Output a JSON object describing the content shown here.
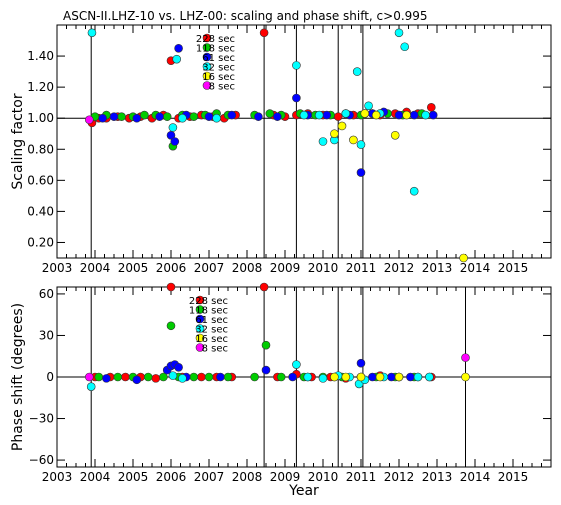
{
  "title": "ASCN-II.LHZ-10 vs. LHZ-00: scaling and phase shift, c>0.995",
  "colors": {
    "228 sec": "#ff0000",
    "118 sec": "#00cc00",
    "61 sec": "#0000ff",
    "32 sec": "#00ffff",
    "16 sec": "#ffff00",
    "8 sec": "#ff00ff"
  },
  "chart_data": [
    {
      "type": "scatter",
      "name": "scaling",
      "ylabel": "Scaling factor",
      "xlabel": "",
      "xlim": [
        2003,
        2016
      ],
      "ylim": [
        0.1,
        1.6
      ],
      "x_ticks": [
        "2003",
        "2004",
        "2005",
        "2006",
        "2007",
        "2008",
        "2009",
        "2010",
        "2011",
        "2012",
        "2013",
        "2014",
        "2015"
      ],
      "y_ticks": [
        "0.20",
        "0.40",
        "0.60",
        "0.80",
        "1.00",
        "1.20",
        "1.40"
      ],
      "reference_line": 1.0,
      "event_lines": [
        2003.9,
        2008.45,
        2009.3,
        2010.4,
        2011.05
      ],
      "legend": [
        "228 sec",
        "118 sec",
        "61 sec",
        "32 sec",
        "16 sec",
        "8 sec"
      ],
      "series": [
        {
          "name": "228 sec",
          "points": [
            [
              2003.92,
              0.97
            ],
            [
              2004.1,
              1.0
            ],
            [
              2004.3,
              1.0
            ],
            [
              2004.6,
              1.01
            ],
            [
              2004.9,
              1.0
            ],
            [
              2005.2,
              1.01
            ],
            [
              2005.5,
              1.0
            ],
            [
              2005.8,
              1.02
            ],
            [
              2006.0,
              1.37
            ],
            [
              2006.2,
              1.0
            ],
            [
              2006.5,
              1.01
            ],
            [
              2006.8,
              1.02
            ],
            [
              2007.1,
              1.01
            ],
            [
              2007.4,
              1.0
            ],
            [
              2007.7,
              1.02
            ],
            [
              2008.45,
              1.55
            ],
            [
              2008.7,
              1.02
            ],
            [
              2009.0,
              1.01
            ],
            [
              2009.3,
              1.02
            ],
            [
              2009.6,
              1.03
            ],
            [
              2010.0,
              1.02
            ],
            [
              2010.4,
              1.01
            ],
            [
              2010.8,
              1.02
            ],
            [
              2011.1,
              1.03
            ],
            [
              2011.5,
              1.02
            ],
            [
              2011.9,
              1.03
            ],
            [
              2012.2,
              1.04
            ],
            [
              2012.5,
              1.03
            ],
            [
              2012.85,
              1.07
            ]
          ]
        },
        {
          "name": "118 sec",
          "points": [
            [
              2004.0,
              1.01
            ],
            [
              2004.3,
              1.02
            ],
            [
              2004.7,
              1.01
            ],
            [
              2005.0,
              1.01
            ],
            [
              2005.3,
              1.02
            ],
            [
              2005.6,
              1.02
            ],
            [
              2005.9,
              1.01
            ],
            [
              2006.05,
              0.82
            ],
            [
              2006.3,
              1.02
            ],
            [
              2006.6,
              1.01
            ],
            [
              2006.9,
              1.02
            ],
            [
              2007.2,
              1.03
            ],
            [
              2007.5,
              1.02
            ],
            [
              2008.2,
              1.02
            ],
            [
              2008.6,
              1.03
            ],
            [
              2008.9,
              1.02
            ],
            [
              2009.4,
              1.03
            ],
            [
              2009.8,
              1.02
            ],
            [
              2010.2,
              1.02
            ],
            [
              2010.6,
              1.03
            ],
            [
              2011.0,
              1.02
            ],
            [
              2011.3,
              1.03
            ],
            [
              2011.7,
              1.03
            ],
            [
              2012.1,
              1.02
            ],
            [
              2012.6,
              1.03
            ]
          ]
        },
        {
          "name": "61 sec",
          "points": [
            [
              2004.2,
              1.0
            ],
            [
              2004.5,
              1.01
            ],
            [
              2005.1,
              1.0
            ],
            [
              2005.7,
              1.01
            ],
            [
              2006.0,
              0.89
            ],
            [
              2006.1,
              0.85
            ],
            [
              2006.2,
              1.45
            ],
            [
              2006.4,
              1.02
            ],
            [
              2007.0,
              1.01
            ],
            [
              2007.6,
              1.02
            ],
            [
              2008.3,
              1.01
            ],
            [
              2008.8,
              1.01
            ],
            [
              2009.3,
              1.13
            ],
            [
              2009.6,
              1.02
            ],
            [
              2010.1,
              1.02
            ],
            [
              2010.7,
              1.02
            ],
            [
              2011.0,
              0.65
            ],
            [
              2011.3,
              1.03
            ],
            [
              2011.6,
              1.04
            ],
            [
              2012.0,
              1.02
            ],
            [
              2012.4,
              1.02
            ],
            [
              2012.9,
              1.02
            ]
          ]
        },
        {
          "name": "32 sec",
          "points": [
            [
              2003.92,
              1.55
            ],
            [
              2006.05,
              0.94
            ],
            [
              2006.15,
              1.38
            ],
            [
              2006.3,
              1.0
            ],
            [
              2007.2,
              1.0
            ],
            [
              2009.3,
              1.34
            ],
            [
              2009.5,
              1.02
            ],
            [
              2009.9,
              1.02
            ],
            [
              2010.0,
              0.85
            ],
            [
              2010.3,
              0.86
            ],
            [
              2010.6,
              1.03
            ],
            [
              2010.9,
              1.3
            ],
            [
              2011.0,
              0.83
            ],
            [
              2011.2,
              1.08
            ],
            [
              2011.5,
              1.03
            ],
            [
              2012.0,
              1.55
            ],
            [
              2012.15,
              1.46
            ],
            [
              2012.4,
              0.53
            ],
            [
              2012.7,
              1.02
            ]
          ]
        },
        {
          "name": "16 sec",
          "points": [
            [
              2010.3,
              0.9
            ],
            [
              2010.5,
              0.95
            ],
            [
              2010.8,
              0.86
            ],
            [
              2011.1,
              1.03
            ],
            [
              2011.4,
              1.02
            ],
            [
              2011.9,
              0.89
            ],
            [
              2012.2,
              1.02
            ],
            [
              2013.7,
              0.1
            ]
          ]
        },
        {
          "name": "8 sec",
          "points": [
            [
              2003.85,
              0.99
            ]
          ]
        }
      ]
    },
    {
      "type": "scatter",
      "name": "phase",
      "ylabel": "Phase shift (degrees)",
      "xlabel": "Year",
      "xlim": [
        2003,
        2016
      ],
      "ylim": [
        -65,
        65
      ],
      "x_ticks": [
        "2003",
        "2004",
        "2005",
        "2006",
        "2007",
        "2008",
        "2009",
        "2010",
        "2011",
        "2012",
        "2013",
        "2014",
        "2015"
      ],
      "y_ticks": [
        "60",
        "30",
        "0",
        "−30",
        "−60"
      ],
      "reference_line": 0,
      "event_lines": [
        2003.9,
        2008.45,
        2009.3,
        2010.4,
        2011.05,
        2013.75
      ],
      "legend": [
        "228 sec",
        "118 sec",
        "61 sec",
        "32 sec",
        "16 sec",
        "8 sec"
      ],
      "series": [
        {
          "name": "228 sec",
          "points": [
            [
              2004.0,
              0
            ],
            [
              2004.4,
              0
            ],
            [
              2004.8,
              0
            ],
            [
              2005.2,
              0
            ],
            [
              2005.6,
              -1
            ],
            [
              2006.0,
              65
            ],
            [
              2006.3,
              0
            ],
            [
              2006.8,
              0
            ],
            [
              2007.2,
              0
            ],
            [
              2007.6,
              0
            ],
            [
              2008.45,
              65
            ],
            [
              2008.8,
              0
            ],
            [
              2009.3,
              2
            ],
            [
              2009.7,
              0
            ],
            [
              2010.2,
              0
            ],
            [
              2010.6,
              -1
            ],
            [
              2011.0,
              0
            ],
            [
              2011.5,
              1
            ],
            [
              2012.0,
              0
            ],
            [
              2012.5,
              0
            ],
            [
              2012.85,
              0
            ]
          ]
        },
        {
          "name": "118 sec",
          "points": [
            [
              2004.1,
              0
            ],
            [
              2004.6,
              0
            ],
            [
              2005.0,
              0
            ],
            [
              2005.4,
              0
            ],
            [
              2005.8,
              0
            ],
            [
              2006.0,
              37
            ],
            [
              2006.2,
              0
            ],
            [
              2006.6,
              0
            ],
            [
              2007.0,
              0
            ],
            [
              2007.5,
              0
            ],
            [
              2008.2,
              0
            ],
            [
              2008.5,
              23
            ],
            [
              2008.9,
              0
            ],
            [
              2009.5,
              0
            ],
            [
              2010.0,
              0
            ],
            [
              2010.5,
              0
            ],
            [
              2011.0,
              0
            ],
            [
              2011.4,
              0
            ],
            [
              2011.9,
              0
            ],
            [
              2012.4,
              0
            ]
          ]
        },
        {
          "name": "61 sec",
          "points": [
            [
              2004.3,
              -1
            ],
            [
              2005.1,
              -2
            ],
            [
              2005.9,
              5
            ],
            [
              2006.0,
              8
            ],
            [
              2006.1,
              9
            ],
            [
              2006.2,
              7
            ],
            [
              2006.4,
              0
            ],
            [
              2007.3,
              0
            ],
            [
              2008.5,
              5
            ],
            [
              2009.2,
              0
            ],
            [
              2009.6,
              0
            ],
            [
              2010.3,
              0
            ],
            [
              2011.0,
              10
            ],
            [
              2011.3,
              0
            ],
            [
              2011.8,
              0
            ],
            [
              2012.3,
              0
            ],
            [
              2012.8,
              0
            ]
          ]
        },
        {
          "name": "32 sec",
          "points": [
            [
              2003.9,
              -7
            ],
            [
              2006.05,
              1
            ],
            [
              2006.3,
              -1
            ],
            [
              2009.3,
              9
            ],
            [
              2009.6,
              0
            ],
            [
              2010.0,
              -1
            ],
            [
              2010.4,
              1
            ],
            [
              2010.7,
              0
            ],
            [
              2010.95,
              -5
            ],
            [
              2011.1,
              -2
            ],
            [
              2011.6,
              0
            ],
            [
              2012.0,
              0
            ],
            [
              2012.5,
              0
            ],
            [
              2012.8,
              0
            ]
          ]
        },
        {
          "name": "16 sec",
          "points": [
            [
              2010.3,
              0
            ],
            [
              2010.6,
              0
            ],
            [
              2011.0,
              0
            ],
            [
              2011.5,
              0
            ],
            [
              2012.0,
              0
            ],
            [
              2013.75,
              0
            ]
          ]
        },
        {
          "name": "8 sec",
          "points": [
            [
              2003.85,
              0
            ],
            [
              2013.75,
              14
            ]
          ]
        }
      ]
    }
  ]
}
